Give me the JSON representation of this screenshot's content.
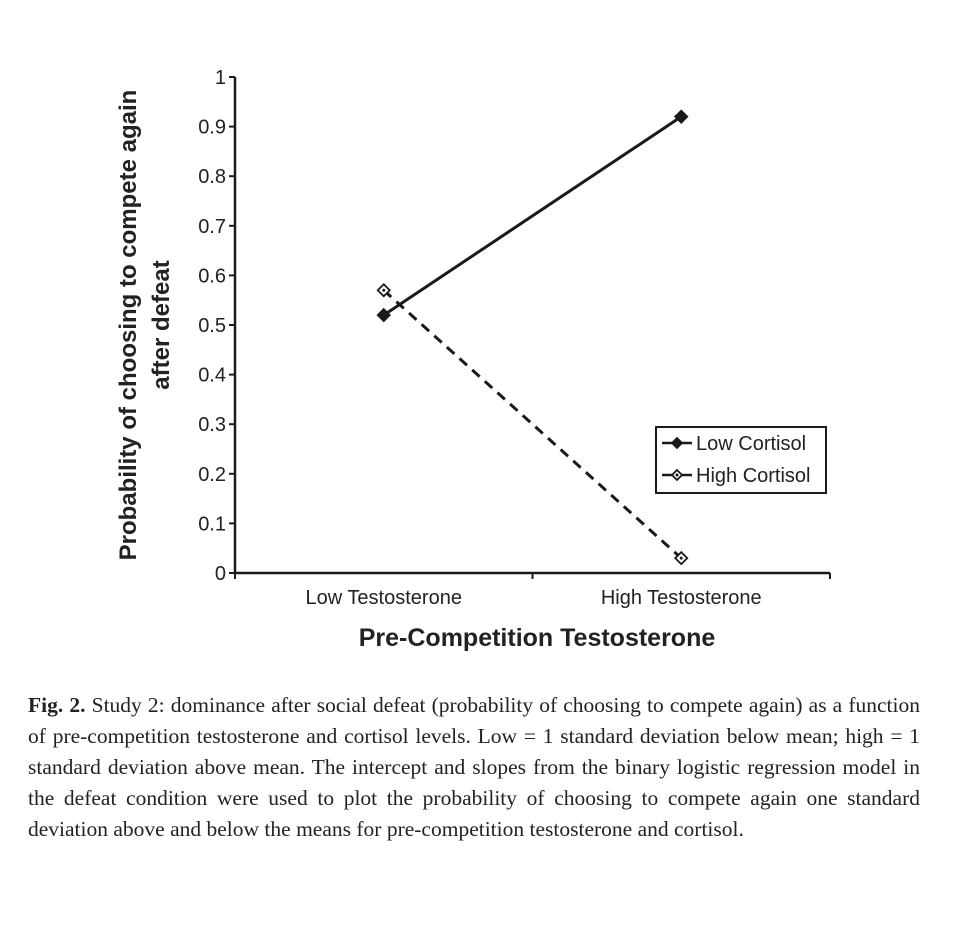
{
  "chart_data": {
    "type": "line",
    "title": "",
    "xlabel": "Pre-Competition Testosterone",
    "ylabel_lines": [
      "Probability of choosing to compete again",
      "after defeat"
    ],
    "categories": [
      "Low Testosterone",
      "High Testosterone"
    ],
    "ylim": [
      0,
      1
    ],
    "yticks": [
      "0",
      "0.1",
      "0.2",
      "0.3",
      "0.4",
      "0.5",
      "0.6",
      "0.7",
      "0.8",
      "0.9",
      "1"
    ],
    "grid": false,
    "legend_placement": "lower-right",
    "series": [
      {
        "name": "Low Cortisol",
        "values": [
          0.52,
          0.92
        ],
        "line": "solid",
        "marker": "filled-diamond",
        "color": "#1a1a1a"
      },
      {
        "name": "High Cortisol",
        "values": [
          0.57,
          0.03
        ],
        "line": "dashed",
        "marker": "open-diamond",
        "color": "#1a1a1a"
      }
    ]
  },
  "caption": {
    "label": "Fig. 2.",
    "text": " Study 2: dominance after social defeat (probability of choosing to compete again) as a function of pre-competition testosterone and cortisol levels. Low = 1 standard deviation below mean; high = 1 standard deviation above mean. The intercept and slopes from the binary logistic regression model in the defeat condition were used to plot the probability of choosing to compete again one standard deviation above and below the means for pre-competition testosterone and cortisol."
  }
}
